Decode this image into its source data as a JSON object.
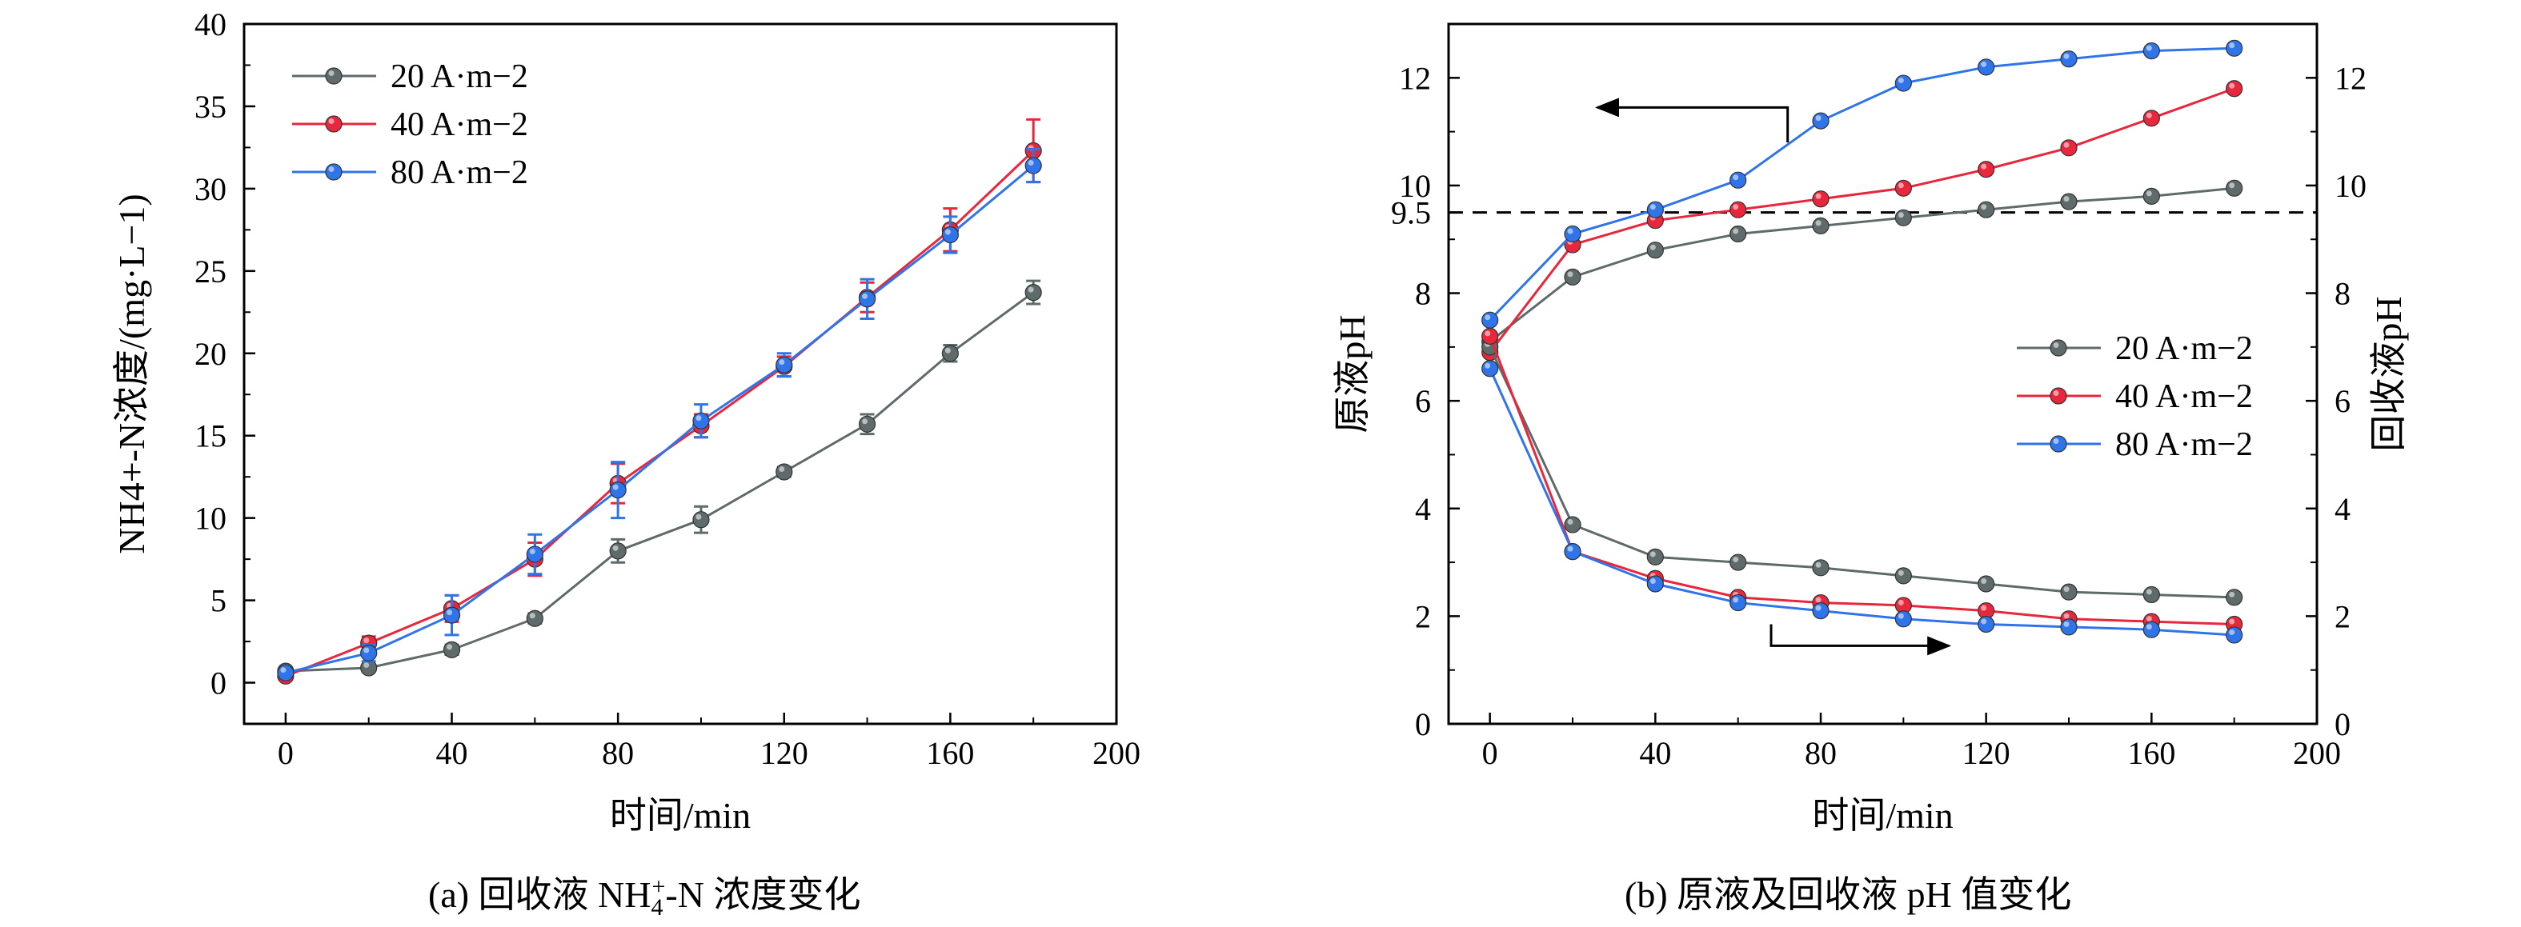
{
  "colors": {
    "s20": "#5f6b6b",
    "s40": "#e8263c",
    "s80": "#2f74e8"
  },
  "captions": {
    "a_prefix": "(a) 回收液 NH",
    "a_sub": "4",
    "a_sup": "+",
    "a_suffix": "-N 浓度变化",
    "b": "(b) 原液及回收液 pH 值变化"
  },
  "chart_data": [
    {
      "type": "line",
      "xlabel": "时间/min",
      "ylabel": "NH4+-N浓度/(mg·L−1)",
      "xlim": [
        -10,
        200
      ],
      "ylim": [
        -2.5,
        40
      ],
      "xticks": [
        0,
        40,
        80,
        120,
        160,
        200
      ],
      "yticks": [
        0,
        5,
        10,
        15,
        20,
        25,
        30,
        35,
        40
      ],
      "legend_position": "top-left",
      "x": [
        0,
        20,
        40,
        60,
        80,
        100,
        120,
        140,
        160,
        180
      ],
      "series": [
        {
          "name": "20 A·m−2",
          "color": "#5f6b6b",
          "values": [
            0.7,
            0.9,
            2.0,
            3.9,
            8.0,
            9.9,
            12.8,
            15.7,
            20.0,
            23.7
          ],
          "errors": [
            0.2,
            0.2,
            0.3,
            0.3,
            0.7,
            0.8,
            0.3,
            0.6,
            0.5,
            0.7
          ]
        },
        {
          "name": "40 A·m−2",
          "color": "#e8263c",
          "values": [
            0.4,
            2.4,
            4.5,
            7.5,
            12.1,
            15.6,
            19.2,
            23.4,
            27.5,
            32.3
          ],
          "errors": [
            0.2,
            0.4,
            0.8,
            1.0,
            1.2,
            0.7,
            0.6,
            0.9,
            1.3,
            1.9
          ]
        },
        {
          "name": "80 A·m−2",
          "color": "#2f74e8",
          "values": [
            0.6,
            1.8,
            4.1,
            7.8,
            11.7,
            15.9,
            19.3,
            23.3,
            27.2,
            31.4
          ],
          "errors": [
            0.2,
            0.5,
            1.2,
            1.2,
            1.7,
            1.0,
            0.7,
            1.2,
            1.1,
            1.0
          ]
        }
      ]
    },
    {
      "type": "line",
      "xlabel": "时间/min",
      "ylabel_left": "原液pH",
      "ylabel_right": "回收液pH",
      "xlim": [
        -10,
        200
      ],
      "ylim": [
        0,
        13
      ],
      "xticks": [
        0,
        40,
        80,
        120,
        160,
        200
      ],
      "yticks": [
        0,
        2,
        4,
        6,
        8,
        10,
        12
      ],
      "extra_ytick": {
        "value": 9.5,
        "label": "9.5"
      },
      "reference_line": {
        "value": 9.5,
        "style": "dashed"
      },
      "legend_position": "right-middle",
      "x": [
        0,
        20,
        40,
        60,
        80,
        100,
        120,
        140,
        160,
        180
      ],
      "series": [
        {
          "name": "20 A·m−2",
          "color": "#5f6b6b",
          "role": "原液",
          "values": [
            7.1,
            8.3,
            8.8,
            9.1,
            9.25,
            9.4,
            9.55,
            9.7,
            9.8,
            9.95
          ]
        },
        {
          "name": "40 A·m−2",
          "color": "#e8263c",
          "role": "原液",
          "values": [
            6.9,
            8.9,
            9.35,
            9.55,
            9.75,
            9.95,
            10.3,
            10.7,
            11.25,
            11.8
          ]
        },
        {
          "name": "80 A·m−2",
          "color": "#2f74e8",
          "role": "原液",
          "values": [
            7.5,
            9.1,
            9.55,
            10.1,
            11.2,
            11.9,
            12.2,
            12.35,
            12.5,
            12.55
          ]
        },
        {
          "name": "20 A·m−2",
          "color": "#5f6b6b",
          "role": "回收液",
          "values": [
            7.0,
            3.7,
            3.1,
            3.0,
            2.9,
            2.75,
            2.6,
            2.45,
            2.4,
            2.35
          ]
        },
        {
          "name": "40 A·m−2",
          "color": "#e8263c",
          "role": "回收液",
          "values": [
            7.2,
            3.2,
            2.7,
            2.35,
            2.25,
            2.2,
            2.1,
            1.95,
            1.9,
            1.85
          ]
        },
        {
          "name": "80 A·m−2",
          "color": "#2f74e8",
          "role": "回收液",
          "values": [
            6.6,
            3.2,
            2.6,
            2.25,
            2.1,
            1.95,
            1.85,
            1.8,
            1.75,
            1.65
          ]
        }
      ]
    }
  ]
}
